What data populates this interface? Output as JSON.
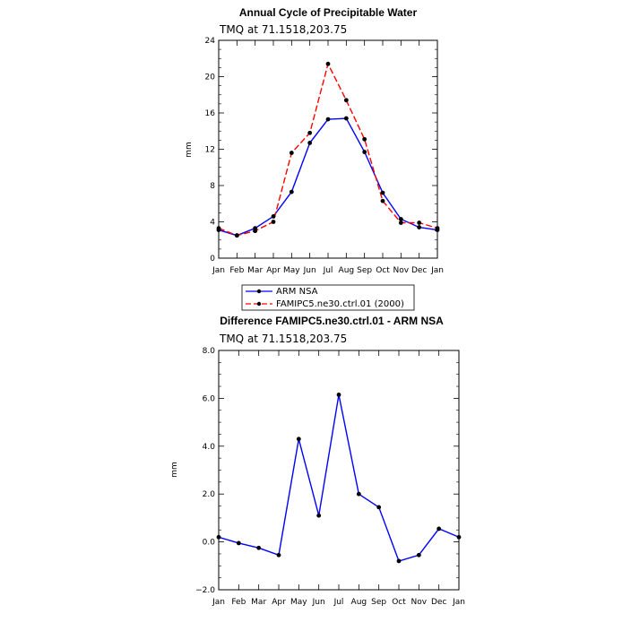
{
  "chart_data": [
    {
      "type": "line",
      "title": "Annual Cycle of Precipitable Water",
      "subtitle": "TMQ at 71.1518,203.75",
      "ylabel": "mm",
      "xlabel": "",
      "ylim": [
        0,
        24
      ],
      "yticks": [
        0,
        4,
        8,
        12,
        16,
        20,
        24
      ],
      "categories": [
        "Jan",
        "Feb",
        "Mar",
        "Apr",
        "May",
        "Jun",
        "Jul",
        "Aug",
        "Sep",
        "Oct",
        "Nov",
        "Dec",
        "Jan"
      ],
      "legend_position": "below",
      "series": [
        {
          "name": "ARM NSA",
          "color": "#0000ff",
          "dash": "solid",
          "values": [
            3.1,
            2.5,
            3.3,
            4.6,
            7.3,
            12.7,
            15.3,
            15.4,
            11.7,
            7.2,
            4.3,
            3.4,
            3.1
          ]
        },
        {
          "name": "FAMIPC5.ne30.ctrl.01 (2000)",
          "color": "#ff0000",
          "dash": "dashed",
          "values": [
            3.3,
            2.5,
            3.0,
            4.0,
            11.6,
            13.8,
            21.4,
            17.4,
            13.1,
            6.3,
            3.9,
            3.9,
            3.3
          ]
        }
      ]
    },
    {
      "type": "line",
      "title": "Difference FAMIPC5.ne30.ctrl.01 - ARM NSA",
      "subtitle": "TMQ at 71.1518,203.75",
      "ylabel": "mm",
      "xlabel": "",
      "ylim": [
        -2.0,
        8.0
      ],
      "yticks": [
        -2.0,
        0.0,
        2.0,
        4.0,
        6.0,
        8.0
      ],
      "ytick_labels": [
        "−2.0",
        "0.0",
        "2.0",
        "4.0",
        "6.0",
        "8.0"
      ],
      "categories": [
        "Jan",
        "Feb",
        "Mar",
        "Apr",
        "May",
        "Jun",
        "Jul",
        "Aug",
        "Sep",
        "Oct",
        "Nov",
        "Dec",
        "Jan"
      ],
      "series": [
        {
          "color": "#0000ff",
          "dash": "solid",
          "values": [
            0.2,
            -0.05,
            -0.25,
            -0.55,
            4.3,
            1.1,
            6.15,
            2.0,
            1.45,
            -0.8,
            -0.55,
            0.55,
            0.2
          ]
        }
      ]
    }
  ]
}
